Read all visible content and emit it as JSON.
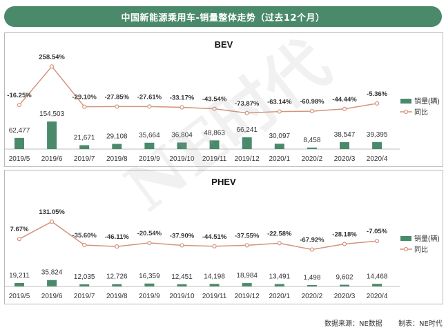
{
  "title": "中国新能源乘用车-销量整体走势（过去12个月）",
  "footer": {
    "source": "数据来源：NE数据",
    "producer": "制表：NE时代"
  },
  "watermark": "NE时代",
  "colors": {
    "bar": "#4a8a6b",
    "line": "#d4937a",
    "title_bg": "#4a8a6b"
  },
  "chart_data": [
    {
      "type": "bar",
      "title": "BEV",
      "categories": [
        "2019/5",
        "2019/6",
        "2019/7",
        "2019/8",
        "2019/9",
        "2019/10",
        "2019/11",
        "2019/12",
        "2020/1",
        "2020/2",
        "2020/3",
        "2020/4"
      ],
      "series": [
        {
          "name": "销量(辆)",
          "type": "bar",
          "values": [
            62477,
            154503,
            21671,
            29108,
            35664,
            36804,
            48863,
            66241,
            30097,
            8458,
            38547,
            39395
          ],
          "labels": [
            "62,477",
            "154,503",
            "21,671",
            "29,108",
            "35,664",
            "36,804",
            "48,863",
            "66,241",
            "30,097",
            "8,458",
            "38,547",
            "39,395"
          ]
        },
        {
          "name": "同比",
          "type": "line",
          "values": [
            -16.25,
            258.54,
            -29.1,
            -27.85,
            -27.61,
            -33.17,
            -43.54,
            -73.87,
            -63.14,
            -60.98,
            -44.44,
            -5.36
          ],
          "labels": [
            "-16.25%",
            "258.54%",
            "-29.10%",
            "-27.85%",
            "-27.61%",
            "-33.17%",
            "-43.54%",
            "-73.87%",
            "-63.14%",
            "-60.98%",
            "-44.44%",
            "-5.36%"
          ]
        }
      ],
      "legend": "right"
    },
    {
      "type": "bar",
      "title": "PHEV",
      "categories": [
        "2019/5",
        "2019/6",
        "2019/7",
        "2019/8",
        "2019/9",
        "2019/10",
        "2019/11",
        "2019/12",
        "2020/1",
        "2020/2",
        "2020/3",
        "2020/4"
      ],
      "series": [
        {
          "name": "销量(辆)",
          "type": "bar",
          "values": [
            19211,
            35824,
            12035,
            12726,
            16359,
            12451,
            14198,
            18984,
            13491,
            1498,
            9602,
            14468
          ],
          "labels": [
            "19,211",
            "35,824",
            "12,035",
            "12,726",
            "16,359",
            "12,451",
            "14,198",
            "18,984",
            "13,491",
            "1,498",
            "9,602",
            "14,468"
          ]
        },
        {
          "name": "同比",
          "type": "line",
          "values": [
            7.67,
            131.05,
            -35.6,
            -46.11,
            -20.54,
            -37.9,
            -44.51,
            -37.55,
            -22.58,
            -67.92,
            -28.18,
            -7.05
          ],
          "labels": [
            "7.67%",
            "131.05%",
            "-35.60%",
            "-46.11%",
            "-20.54%",
            "-37.90%",
            "-44.51%",
            "-37.55%",
            "-22.58%",
            "-67.92%",
            "-28.18%",
            "-7.05%"
          ]
        }
      ],
      "legend": "right"
    }
  ]
}
